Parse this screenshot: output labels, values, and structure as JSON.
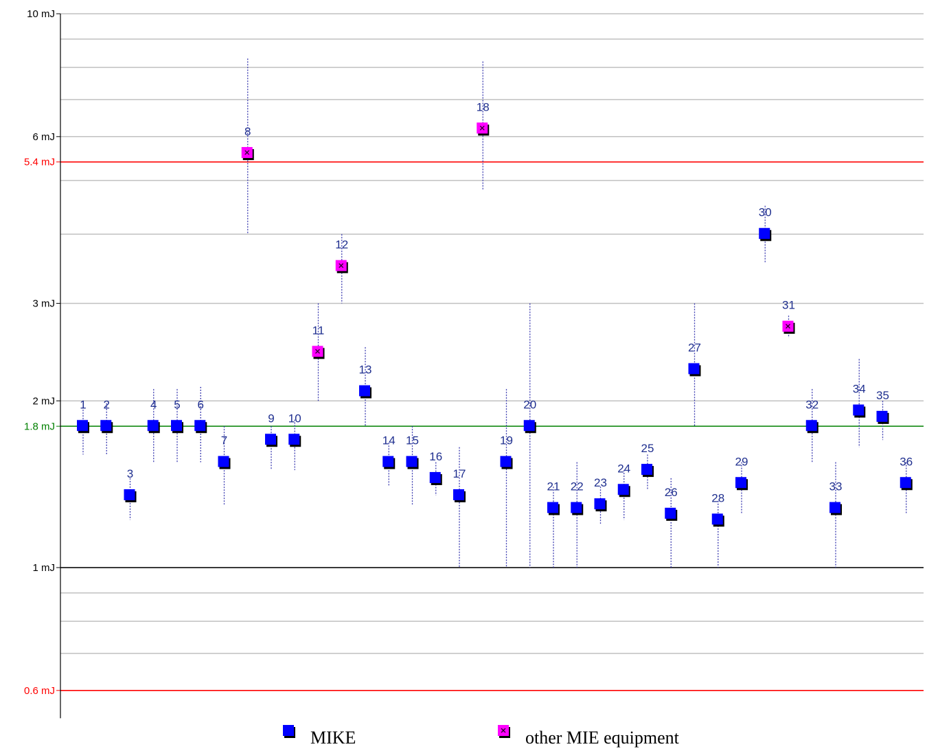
{
  "chart_data": {
    "type": "scatter",
    "title": "",
    "xlabel": "",
    "ylabel": "",
    "yscale": "log",
    "ylim": [
      0.55,
      10
    ],
    "y_tick_labels": [
      {
        "value": 10,
        "label": "10 mJ"
      },
      {
        "value": 6,
        "label": "6 mJ"
      },
      {
        "value": 3,
        "label": "3 mJ"
      },
      {
        "value": 2,
        "label": "2 mJ"
      },
      {
        "value": 1,
        "label": "1 mJ"
      }
    ],
    "minor_gridlines": [
      9,
      8,
      7,
      5,
      4,
      0.9,
      0.8,
      0.7
    ],
    "reference_lines": [
      {
        "value": 5.4,
        "label": "5.4 mJ",
        "color": "#ff0000"
      },
      {
        "value": 1.8,
        "label": "1.8 mJ",
        "color": "#008000"
      },
      {
        "value": 1,
        "label": "",
        "color": "#000000"
      },
      {
        "value": 0.6,
        "label": "0.6 mJ",
        "color": "#ff0000"
      }
    ],
    "legend_position": "bottom",
    "series": [
      {
        "name": "MIKE",
        "color": "#0000ff",
        "points": [
          {
            "label": "1",
            "y": 1.8,
            "low": 1.6,
            "high": 1.95
          },
          {
            "label": "2",
            "y": 1.8,
            "low": 1.6,
            "high": 1.98
          },
          {
            "label": "3",
            "y": 1.35,
            "low": 1.22,
            "high": 1.45
          },
          {
            "label": "4",
            "y": 1.8,
            "low": 1.55,
            "high": 2.1
          },
          {
            "label": "5",
            "y": 1.8,
            "low": 1.55,
            "high": 2.1
          },
          {
            "label": "6",
            "y": 1.8,
            "low": 1.55,
            "high": 2.12
          },
          {
            "label": "7",
            "y": 1.55,
            "low": 1.3,
            "high": 1.8
          },
          {
            "label": "9",
            "y": 1.7,
            "low": 1.5,
            "high": 1.8
          },
          {
            "label": "10",
            "y": 1.7,
            "low": 1.5,
            "high": 1.85
          },
          {
            "label": "13",
            "y": 2.08,
            "low": 1.8,
            "high": 2.5
          },
          {
            "label": "14",
            "y": 1.55,
            "low": 1.4,
            "high": 1.68
          },
          {
            "label": "15",
            "y": 1.55,
            "low": 1.3,
            "high": 1.8
          },
          {
            "label": "16",
            "y": 1.45,
            "low": 1.35,
            "high": 1.55
          },
          {
            "label": "17",
            "y": 1.35,
            "low": 1.0,
            "high": 1.65
          },
          {
            "label": "19",
            "y": 1.55,
            "low": 1.0,
            "high": 2.1
          },
          {
            "label": "20",
            "y": 1.8,
            "low": 1.0,
            "high": 3.0
          },
          {
            "label": "21",
            "y": 1.28,
            "low": 1.0,
            "high": 1.4
          },
          {
            "label": "22",
            "y": 1.28,
            "low": 1.0,
            "high": 1.55
          },
          {
            "label": "23",
            "y": 1.3,
            "low": 1.2,
            "high": 1.4
          },
          {
            "label": "24",
            "y": 1.38,
            "low": 1.22,
            "high": 1.5
          },
          {
            "label": "25",
            "y": 1.5,
            "low": 1.38,
            "high": 1.6
          },
          {
            "label": "26",
            "y": 1.25,
            "low": 1.0,
            "high": 1.45
          },
          {
            "label": "27",
            "y": 2.28,
            "low": 1.8,
            "high": 3.0
          },
          {
            "label": "28",
            "y": 1.22,
            "low": 1.0,
            "high": 1.32
          },
          {
            "label": "29",
            "y": 1.42,
            "low": 1.25,
            "high": 1.55
          },
          {
            "label": "30",
            "y": 4.0,
            "low": 3.55,
            "high": 4.5
          },
          {
            "label": "32",
            "y": 1.8,
            "low": 1.55,
            "high": 2.1
          },
          {
            "label": "33",
            "y": 1.28,
            "low": 1.0,
            "high": 1.55
          },
          {
            "label": "34",
            "y": 1.92,
            "low": 1.65,
            "high": 2.38
          },
          {
            "label": "35",
            "y": 1.87,
            "low": 1.7,
            "high": 2.0
          },
          {
            "label": "36",
            "y": 1.42,
            "low": 1.25,
            "high": 1.55
          }
        ]
      },
      {
        "name": "other MIE equipment",
        "color": "#ff00ff",
        "points": [
          {
            "label": "8",
            "y": 5.6,
            "low": 4.0,
            "high": 8.3
          },
          {
            "label": "11",
            "y": 2.45,
            "low": 2.0,
            "high": 3.0
          },
          {
            "label": "12",
            "y": 3.5,
            "low": 3.0,
            "high": 4.0
          },
          {
            "label": "18",
            "y": 6.2,
            "low": 4.8,
            "high": 8.2
          },
          {
            "label": "31",
            "y": 2.72,
            "low": 2.6,
            "high": 2.85
          }
        ]
      }
    ],
    "legend": [
      {
        "label": "MIKE",
        "marker": "blue-square"
      },
      {
        "label": "other MIE equipment",
        "marker": "magenta-square-x"
      }
    ]
  }
}
